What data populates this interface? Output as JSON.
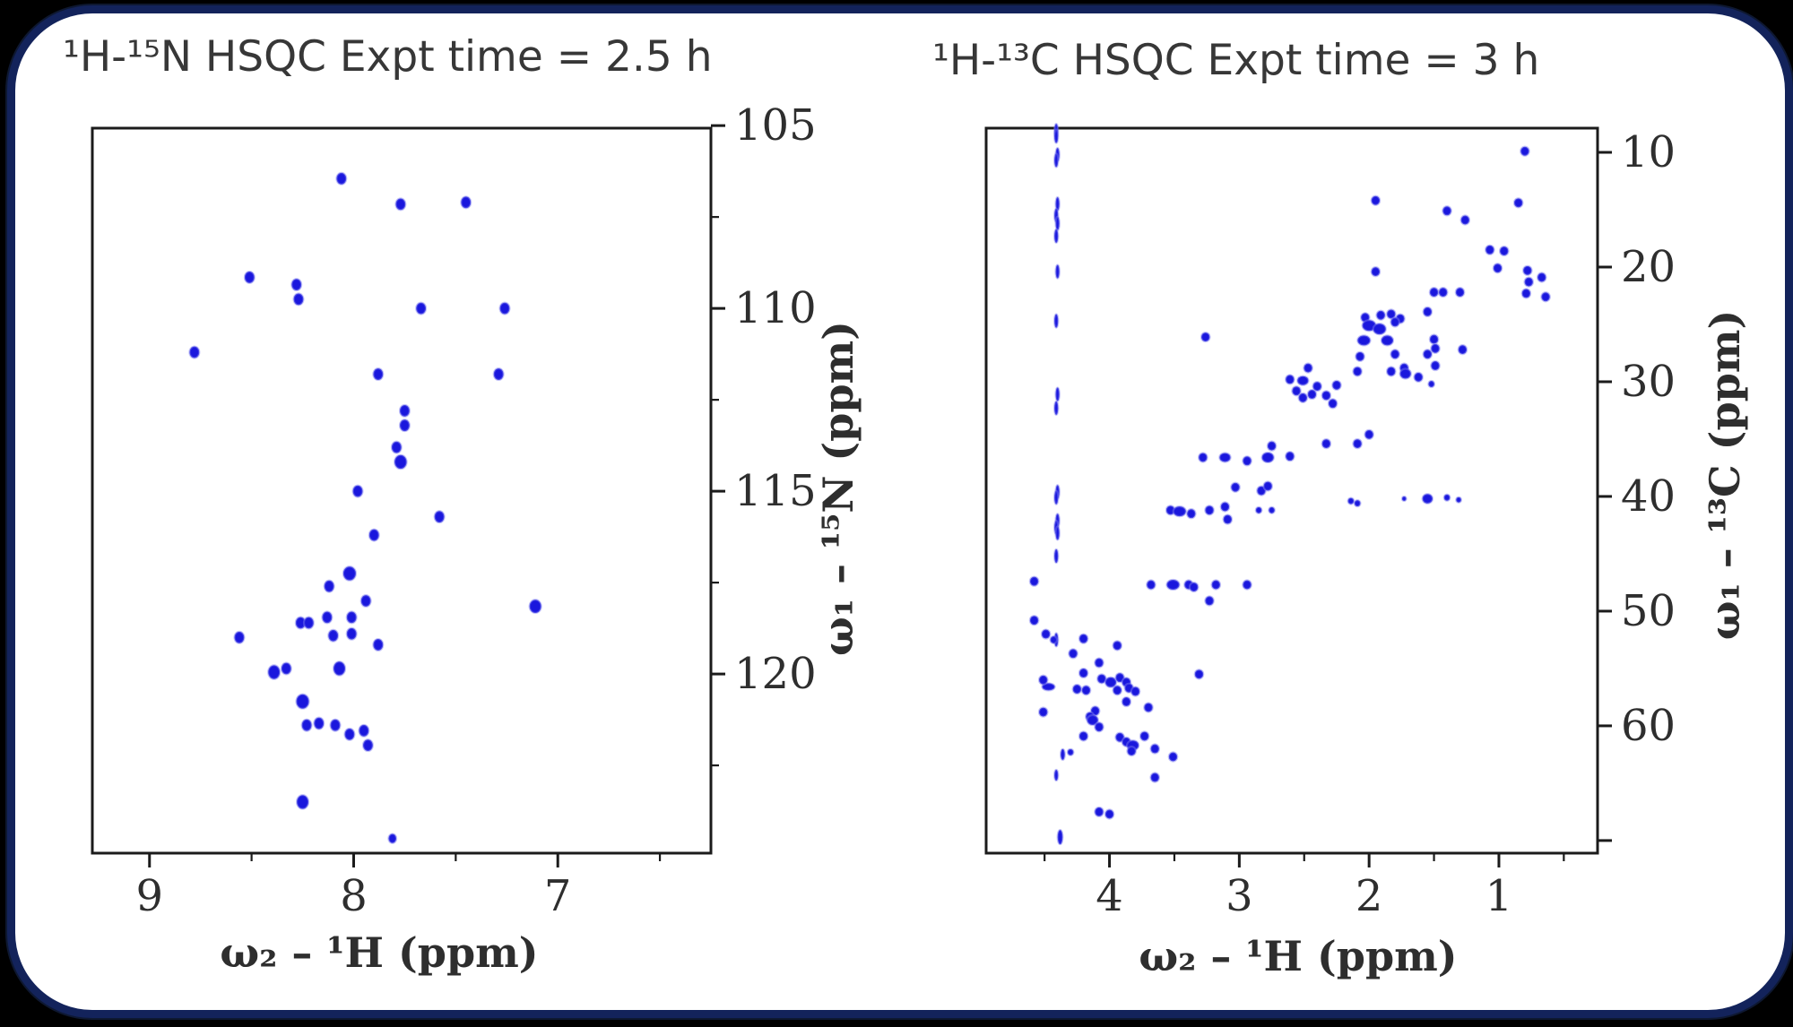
{
  "figure": {
    "outside_color": "#000000",
    "card_background": "#ffffff",
    "card_border_color": "#13235b",
    "spine_color": "#1b1b1b",
    "tick_label_color": "#2e2e2e",
    "title_color": "#373737",
    "point_color": "#1a17dd",
    "point_halo_color": "#7a7af0"
  },
  "chart_data": [
    {
      "type": "scatter",
      "title": "¹H-¹⁵N HSQC Expt time = 2.5 h",
      "xlabel": "ω₂ – ¹H (ppm)",
      "ylabel": "ω₁ – ¹⁵N (ppm)",
      "axes_reversed": true,
      "grid": false,
      "xlim": [
        9.28,
        6.25
      ],
      "ylim": [
        105.07,
        124.9
      ],
      "x_ticks": [
        9,
        8,
        7
      ],
      "x_minor_ticks": [
        8.5,
        7.5,
        6.5
      ],
      "y_ticks": [
        105,
        110,
        115,
        120
      ],
      "y_minor_ticks": [
        107.5,
        112.5,
        117.5,
        122.5
      ],
      "y_extra_ticks": [],
      "points": [
        [
          8.06,
          106.45
        ],
        [
          7.77,
          107.15
        ],
        [
          7.45,
          107.1
        ],
        [
          8.51,
          109.15
        ],
        [
          8.28,
          109.35
        ],
        [
          8.27,
          109.75
        ],
        [
          7.67,
          110.0
        ],
        [
          7.26,
          110.0
        ],
        [
          8.78,
          111.2
        ],
        [
          7.88,
          111.8
        ],
        [
          7.29,
          111.8
        ],
        [
          7.75,
          112.8
        ],
        [
          7.75,
          113.2
        ],
        [
          7.79,
          113.8
        ],
        [
          7.77,
          114.2,
          1.25,
          1.2
        ],
        [
          7.98,
          115.0
        ],
        [
          7.58,
          115.7
        ],
        [
          7.9,
          116.2
        ],
        [
          8.02,
          117.25,
          1.3,
          1.2
        ],
        [
          8.12,
          117.6
        ],
        [
          7.94,
          118.0
        ],
        [
          7.11,
          118.15,
          1.2,
          1.15
        ],
        [
          8.13,
          118.45
        ],
        [
          8.01,
          118.45
        ],
        [
          8.26,
          118.6
        ],
        [
          8.22,
          118.6
        ],
        [
          8.56,
          119.0
        ],
        [
          8.1,
          118.95
        ],
        [
          8.01,
          118.9
        ],
        [
          7.88,
          119.2
        ],
        [
          8.39,
          119.95,
          1.2,
          1.2
        ],
        [
          8.33,
          119.85
        ],
        [
          8.07,
          119.85,
          1.2,
          1.2
        ],
        [
          8.25,
          120.75,
          1.3,
          1.25
        ],
        [
          8.23,
          121.4
        ],
        [
          8.17,
          121.35
        ],
        [
          8.09,
          121.4
        ],
        [
          8.02,
          121.65
        ],
        [
          7.95,
          121.55
        ],
        [
          7.93,
          121.95
        ],
        [
          8.25,
          123.5,
          1.2,
          1.2
        ],
        [
          7.81,
          124.5,
          0.8,
          0.8
        ]
      ]
    },
    {
      "type": "scatter",
      "title": "¹H-¹³C HSQC Expt time = 3 h",
      "xlabel": "ω₂ – ¹H (ppm)",
      "ylabel": "ω₁ – ¹³C (ppm)",
      "axes_reversed": true,
      "grid": false,
      "xlim": [
        4.95,
        0.24
      ],
      "ylim": [
        7.89,
        71.1
      ],
      "x_ticks": [
        4,
        3,
        2,
        1
      ],
      "x_minor_ticks": [
        4.5,
        3.5,
        2.5,
        1.5,
        0.5
      ],
      "y_ticks": [
        10,
        20,
        30,
        40,
        50,
        60
      ],
      "y_minor_ticks": [],
      "y_extra_ticks": [
        70
      ],
      "points": [
        [
          4.41,
          8.1,
          0.45,
          1.5
        ],
        [
          4.41,
          8.6,
          0.45,
          1.5
        ],
        [
          4.4,
          10.2,
          0.45,
          1.5
        ],
        [
          4.41,
          10.7,
          0.45,
          1.5
        ],
        [
          4.4,
          14.5,
          0.45,
          1.5
        ],
        [
          4.41,
          15.5,
          0.45,
          1.5
        ],
        [
          4.4,
          16.2,
          0.45,
          1.5
        ],
        [
          4.41,
          17.3,
          0.45,
          1.5
        ],
        [
          4.4,
          20.4,
          0.45,
          1.5
        ],
        [
          4.41,
          24.7,
          0.45,
          1.5
        ],
        [
          4.4,
          31.1,
          0.45,
          1.5
        ],
        [
          4.41,
          32.3,
          0.45,
          1.5
        ],
        [
          4.4,
          39.6,
          0.45,
          1.5
        ],
        [
          4.41,
          40.1,
          0.45,
          1.5
        ],
        [
          4.4,
          42.1,
          0.45,
          1.5
        ],
        [
          4.41,
          42.7,
          0.45,
          1.5
        ],
        [
          4.4,
          43.2,
          0.45,
          1.5
        ],
        [
          4.41,
          45.2,
          0.45,
          1.5
        ],
        [
          4.41,
          52.5,
          0.45,
          1.5
        ],
        [
          4.47,
          56.6,
          1.5,
          0.8
        ],
        [
          4.36,
          62.5,
          0.5,
          1.2
        ],
        [
          4.41,
          64.3,
          0.45,
          1.2
        ],
        [
          4.38,
          69.7,
          0.6,
          1.6
        ],
        [
          0.8,
          9.9
        ],
        [
          1.95,
          14.2
        ],
        [
          0.85,
          14.4
        ],
        [
          1.4,
          15.1
        ],
        [
          1.26,
          15.9
        ],
        [
          1.07,
          18.5
        ],
        [
          0.96,
          18.6
        ],
        [
          1.01,
          20.1
        ],
        [
          0.78,
          20.3
        ],
        [
          1.95,
          20.4
        ],
        [
          0.67,
          20.9
        ],
        [
          0.77,
          21.3
        ],
        [
          0.79,
          22.3
        ],
        [
          0.64,
          22.6
        ],
        [
          1.5,
          22.2
        ],
        [
          1.43,
          22.2
        ],
        [
          1.3,
          22.2
        ],
        [
          1.55,
          23.9
        ],
        [
          1.83,
          24.1
        ],
        [
          2.03,
          24.4
        ],
        [
          1.91,
          24.2
        ],
        [
          1.76,
          24.5
        ],
        [
          1.8,
          24.8
        ],
        [
          2.0,
          25.1,
          1.6,
          1.2
        ],
        [
          1.92,
          25.4,
          1.5,
          1.2
        ],
        [
          3.26,
          26.1
        ],
        [
          2.04,
          26.4,
          1.5,
          1.1
        ],
        [
          1.86,
          26.4,
          1.4,
          1.1
        ],
        [
          1.5,
          26.3
        ],
        [
          1.49,
          27.1
        ],
        [
          1.55,
          27.6
        ],
        [
          1.8,
          27.6
        ],
        [
          1.28,
          27.2
        ],
        [
          2.07,
          27.8
        ],
        [
          2.61,
          29.8
        ],
        [
          2.47,
          28.8
        ],
        [
          2.09,
          29.1
        ],
        [
          1.73,
          28.8
        ],
        [
          2.51,
          29.9,
          1.3,
          1.0
        ],
        [
          2.4,
          30.4
        ],
        [
          2.44,
          31.1
        ],
        [
          2.33,
          31.2
        ],
        [
          2.25,
          30.3
        ],
        [
          2.56,
          30.8
        ],
        [
          2.51,
          31.4
        ],
        [
          2.28,
          31.9
        ],
        [
          1.83,
          29.1
        ],
        [
          1.49,
          28.6
        ],
        [
          1.72,
          29.3,
          1.3,
          1.1
        ],
        [
          1.62,
          29.6
        ],
        [
          1.52,
          30.2,
          0.7,
          0.7
        ],
        [
          2.0,
          34.6
        ],
        [
          2.33,
          35.4
        ],
        [
          2.09,
          35.4
        ],
        [
          2.75,
          35.6
        ],
        [
          3.28,
          36.6
        ],
        [
          3.11,
          36.6,
          1.3,
          1.0
        ],
        [
          2.94,
          36.9
        ],
        [
          2.78,
          36.6,
          1.4,
          1.1
        ],
        [
          2.61,
          36.5
        ],
        [
          3.03,
          39.2
        ],
        [
          2.83,
          39.5
        ],
        [
          2.78,
          39.1
        ],
        [
          1.73,
          40.2,
          0.5,
          0.5
        ],
        [
          1.55,
          40.2,
          1.2,
          1.05
        ],
        [
          1.4,
          40.1,
          0.7,
          0.7
        ],
        [
          1.31,
          40.3,
          0.6,
          0.6
        ],
        [
          3.11,
          40.9
        ],
        [
          3.09,
          42.0
        ],
        [
          3.53,
          41.2
        ],
        [
          3.46,
          41.3,
          1.5,
          1.1
        ],
        [
          3.37,
          41.5
        ],
        [
          3.23,
          41.2
        ],
        [
          2.85,
          41.2,
          0.7,
          0.7
        ],
        [
          2.75,
          41.2,
          0.7,
          0.7
        ],
        [
          2.14,
          40.4,
          0.7,
          0.7
        ],
        [
          2.09,
          40.6,
          0.7,
          0.7
        ],
        [
          4.58,
          47.4
        ],
        [
          3.68,
          47.7
        ],
        [
          3.51,
          47.7,
          1.5,
          1.1
        ],
        [
          3.39,
          47.7
        ],
        [
          3.35,
          47.9
        ],
        [
          3.18,
          47.7
        ],
        [
          2.94,
          47.7
        ],
        [
          3.23,
          49.1
        ],
        [
          4.58,
          50.8
        ],
        [
          4.49,
          52.0
        ],
        [
          4.43,
          52.5,
          0.8,
          0.8
        ],
        [
          4.2,
          52.4
        ],
        [
          3.94,
          53.0
        ],
        [
          4.28,
          53.7
        ],
        [
          4.08,
          54.5
        ],
        [
          4.2,
          55.4
        ],
        [
          4.06,
          55.9
        ],
        [
          4.51,
          56.0
        ],
        [
          4.25,
          56.8
        ],
        [
          4.18,
          56.9
        ],
        [
          3.99,
          56.2,
          1.3,
          1.1
        ],
        [
          3.94,
          56.9
        ],
        [
          3.92,
          55.8
        ],
        [
          3.87,
          56.2
        ],
        [
          3.85,
          56.7
        ],
        [
          3.8,
          57.0
        ],
        [
          3.87,
          57.9
        ],
        [
          3.31,
          55.5
        ],
        [
          3.7,
          58.4
        ],
        [
          4.51,
          58.8
        ],
        [
          4.11,
          58.7
        ],
        [
          4.15,
          59.2
        ],
        [
          4.13,
          59.5,
          1.3,
          1.1
        ],
        [
          4.08,
          60.1
        ],
        [
          4.2,
          60.9
        ],
        [
          3.92,
          61.0
        ],
        [
          3.73,
          60.9
        ],
        [
          3.87,
          61.4
        ],
        [
          3.82,
          61.7,
          1.4,
          1.1
        ],
        [
          3.65,
          62.0
        ],
        [
          3.83,
          62.2
        ],
        [
          3.51,
          62.7
        ],
        [
          4.3,
          62.3,
          0.7,
          0.7
        ],
        [
          3.65,
          64.5
        ],
        [
          4.08,
          67.5
        ],
        [
          4.0,
          67.7
        ]
      ]
    }
  ]
}
